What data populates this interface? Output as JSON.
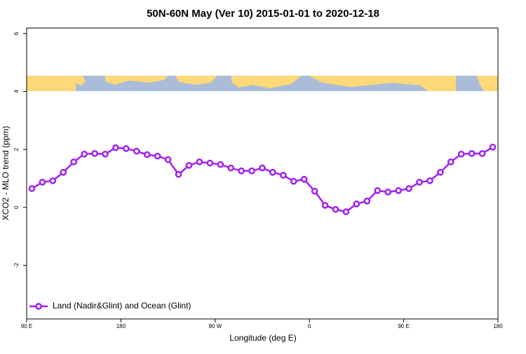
{
  "chart_data": {
    "type": "line",
    "title": "50N-60N May (Ver 10)   2015-01-01 to 2020-12-18",
    "x_label": "Longitude (deg E)",
    "y_label": "XCO2 - MLO trend (ppm)",
    "xlim": [
      90,
      540
    ],
    "xticks": [
      {
        "value": 90,
        "label": "90 E"
      },
      {
        "value": 180,
        "label": "180"
      },
      {
        "value": 270,
        "label": "90 W"
      },
      {
        "value": 360,
        "label": "0"
      },
      {
        "value": 450,
        "label": "90 E"
      },
      {
        "value": 540,
        "label": "180"
      }
    ],
    "ylim": [
      -3.85,
      6.19
    ],
    "yticks": [
      -2,
      0,
      2,
      4,
      6
    ],
    "legend": "bottom-left",
    "series": [
      {
        "name": "Land (Nadir&Glint) and Ocean (Glint)",
        "color": "#a020f0",
        "x": [
          95,
          105,
          115,
          125,
          135,
          145,
          155,
          165,
          175,
          185,
          195,
          205,
          215,
          225,
          235,
          245,
          255,
          265,
          275,
          285,
          295,
          305,
          315,
          325,
          335,
          345,
          355,
          365,
          375,
          385,
          395,
          405,
          415,
          425,
          435,
          445,
          455,
          465,
          475,
          485,
          495,
          505,
          515,
          525,
          535
        ],
        "values": [
          0.65,
          0.87,
          0.92,
          1.21,
          1.57,
          1.84,
          1.86,
          1.84,
          2.06,
          2.03,
          1.94,
          1.82,
          1.77,
          1.65,
          1.14,
          1.45,
          1.57,
          1.53,
          1.48,
          1.36,
          1.26,
          1.26,
          1.36,
          1.21,
          1.11,
          0.9,
          0.97,
          0.56,
          0.07,
          -0.07,
          -0.15,
          0.12,
          0.22,
          0.58,
          0.53,
          0.58,
          0.65,
          0.87,
          0.92,
          1.21,
          1.57,
          1.84,
          1.86,
          1.86,
          2.08
        ]
      }
    ]
  }
}
